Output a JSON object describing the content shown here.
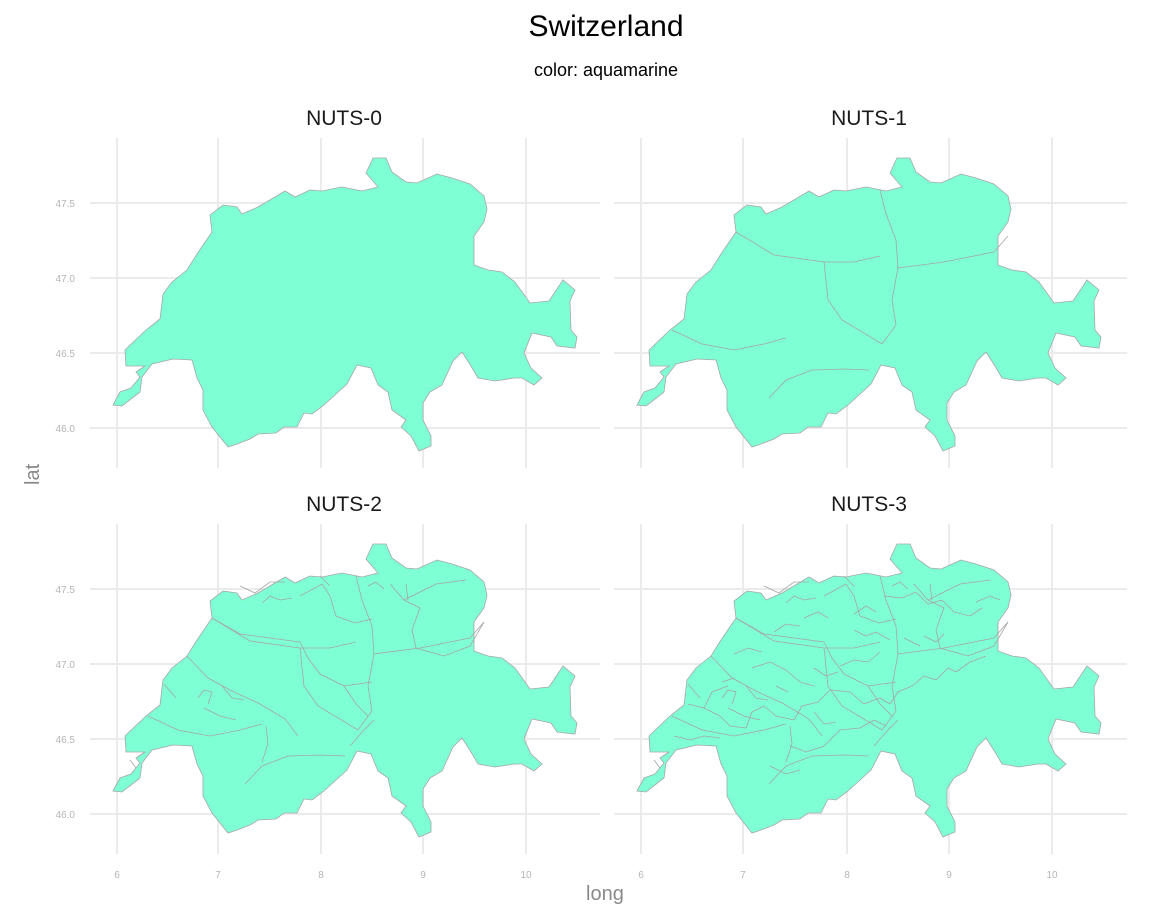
{
  "title": "Switzerland",
  "subtitle": "color: aquamarine",
  "x_axis_label": "long",
  "y_axis_label": "lat",
  "fill_color": "#7fffd4",
  "chart_data": {
    "type": "map",
    "region": "Switzerland",
    "facets": [
      {
        "name": "NUTS-0"
      },
      {
        "name": "NUTS-1"
      },
      {
        "name": "NUTS-2"
      },
      {
        "name": "NUTS-3"
      }
    ],
    "x_ticks": [
      "6",
      "7",
      "8",
      "9",
      "10"
    ],
    "y_ticks": [
      "46.0",
      "46.5",
      "47.0",
      "47.5"
    ],
    "xlim": [
      5.95,
      10.55
    ],
    "ylim": [
      45.82,
      47.82
    ],
    "grid": true,
    "fill": "#7fffd4",
    "border": "#a6a6a6"
  }
}
